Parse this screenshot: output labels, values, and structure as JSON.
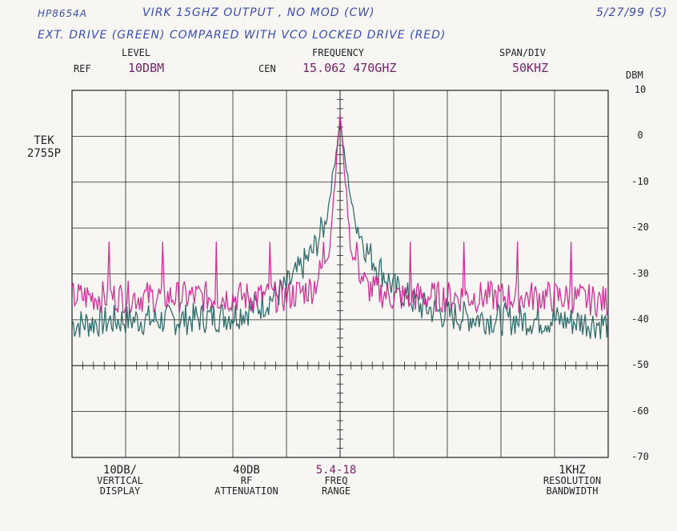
{
  "annotations": {
    "model": "HP8654A",
    "title_line": "VIRK 15GHZ OUTPUT , NO MOD (CW)",
    "date": "5/27/99 (S)",
    "subtitle": "EXT. DRIVE (GREEN) COMPARED WITH VCO LOCKED DRIVE (RED)"
  },
  "header": {
    "ref_label": "REF",
    "level_label": "LEVEL",
    "level_value": "10DBM",
    "cen_label": "CEN",
    "frequency_label": "FREQUENCY",
    "frequency_value": "15.062 470GHZ",
    "span_label": "SPAN/DIV",
    "span_value": "50KHZ",
    "unit": "DBM"
  },
  "instrument": {
    "line1": "TEK",
    "line2": "2755P"
  },
  "footer": {
    "vertical_value": "10DB/",
    "vertical_l1": "VERTICAL",
    "vertical_l2": "DISPLAY",
    "rf_value": "40DB",
    "rf_l1": "RF",
    "rf_l2": "ATTENUATION",
    "freq_value": "5.4-18",
    "freq_l1": "FREQ",
    "freq_l2": "RANGE",
    "res_value": "1KHZ",
    "res_l1": "RESOLUTION",
    "res_l2": "BANDWIDTH"
  },
  "colors": {
    "grid": "#222222",
    "green_trace": "#1e5f5f",
    "red_trace": "#cc1f8f"
  },
  "chart_data": {
    "type": "line",
    "xlim": [
      -5,
      5
    ],
    "ylim": [
      -70,
      10
    ],
    "yticks": [
      10,
      0,
      -10,
      -20,
      -30,
      -40,
      -50,
      -60,
      -70
    ],
    "grid": true,
    "series": [
      {
        "name": "EXT. DRIVE (GREEN)",
        "color": "#1e5f5f",
        "x": [
          -5,
          -4,
          -3,
          -2,
          -1.5,
          -1,
          -0.5,
          -0.25,
          0,
          0.1,
          0.25,
          0.5,
          1,
          1.5,
          2,
          3,
          4,
          5
        ],
        "y": [
          -41,
          -40,
          -40,
          -39,
          -37,
          -33,
          -25,
          -18,
          3,
          -6,
          -17,
          -25,
          -33,
          -37,
          -39,
          -40,
          -40,
          -41
        ]
      },
      {
        "name": "VCO LOCKED DRIVE (RED)",
        "color": "#cc1f8f",
        "x": [
          -5,
          -4.5,
          -4,
          -3,
          -2,
          -1,
          -0.5,
          -0.2,
          0,
          0.2,
          0.5,
          1,
          2,
          3,
          4,
          5
        ],
        "y": [
          -35,
          -35,
          -35,
          -35,
          -35,
          -35,
          -33,
          -25,
          5,
          -25,
          -33,
          -35,
          -35,
          -35,
          -35,
          -36
        ],
        "spurs": {
          "x": [
            -4.3,
            -3.3,
            -2.3,
            -1.3,
            -0.3,
            0.3,
            1.3,
            2.3,
            3.3,
            4.3,
            5.3
          ],
          "y": [
            -23,
            -23,
            -23,
            -23,
            -23,
            -23,
            -23,
            -23,
            -23,
            -23,
            -23
          ]
        }
      }
    ]
  }
}
